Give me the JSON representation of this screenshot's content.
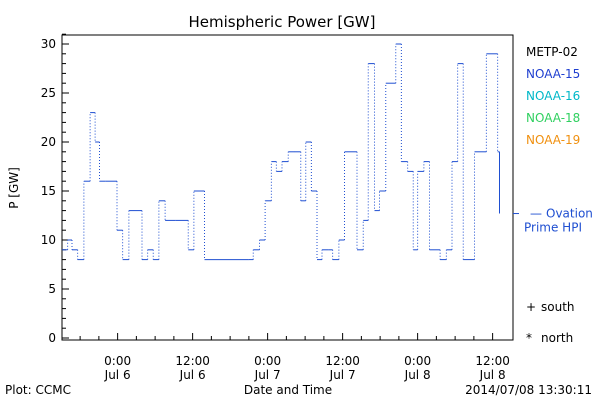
{
  "footer": {
    "plot_credit": "Plot: CCMC",
    "timestamp": "2014/07/08 13:30:11"
  },
  "colors": {
    "series_line": "#1f4fd1",
    "frame": "#000000",
    "METP-02": "#000000",
    "NOAA-15": "#1f3fd0",
    "NOAA-16": "#00b8c8",
    "NOAA-18": "#30d060",
    "NOAA-19": "#f09010",
    "ovation": "#1f4fd1"
  },
  "chart_data": {
    "type": "line",
    "title": "Hemispheric Power [GW]",
    "xlabel": "Date and Time",
    "ylabel": "P [GW]",
    "ylim": [
      0,
      31
    ],
    "xlim": [
      0,
      70
    ],
    "x_unit": "hours from the start of the plotted window (left axis edge)",
    "yticks": [
      0,
      5,
      10,
      15,
      20,
      25,
      30
    ],
    "xticks": [
      {
        "x": 8.9,
        "time": "0:00",
        "date": "Jul 6"
      },
      {
        "x": 20.9,
        "time": "12:00",
        "date": "Jul 6"
      },
      {
        "x": 32.9,
        "time": "0:00",
        "date": "Jul 7"
      },
      {
        "x": 44.9,
        "time": "12:00",
        "date": "Jul 7"
      },
      {
        "x": 56.9,
        "time": "0:00",
        "date": "Jul 8"
      },
      {
        "x": 68.9,
        "time": "12:00",
        "date": "Jul 8"
      }
    ],
    "grid": false,
    "series": [
      {
        "name": "Ovation Prime HPI",
        "style": "dotted step",
        "x": [
          0,
          0.9,
          1.6,
          2.5,
          3.5,
          4.5,
          5.3,
          6.0,
          7.0,
          8.8,
          9.7,
          10.7,
          12.8,
          13.7,
          14.6,
          15.5,
          16.5,
          18.2,
          20.2,
          21.1,
          22.8,
          29.9,
          30.6,
          31.6,
          32.5,
          33.5,
          34.3,
          35.2,
          36.2,
          37.2,
          38.2,
          39.0,
          39.9,
          40.8,
          41.6,
          42.6,
          43.3,
          44.3,
          45.2,
          47.2,
          48.2,
          49.0,
          50.0,
          50.8,
          51.8,
          53.4,
          54.3,
          55.3,
          56.2,
          56.9,
          57.9,
          58.8,
          60.5,
          61.5,
          62.4,
          63.3,
          64.2,
          66.0,
          67.9,
          69.7
        ],
        "values": [
          9,
          10,
          9,
          8,
          16,
          23,
          20,
          16,
          16,
          11,
          8,
          13,
          8,
          9,
          8,
          14,
          12,
          12,
          9,
          15,
          8,
          8,
          9,
          10,
          14,
          18,
          17,
          18,
          19,
          19,
          14,
          20,
          15,
          8,
          9,
          9,
          8,
          10,
          19,
          9,
          12,
          28,
          13,
          15,
          26,
          30,
          18,
          17,
          9,
          17,
          18,
          9,
          8,
          9,
          18,
          28,
          8,
          19,
          29,
          19
        ],
        "x_end": 70
      }
    ],
    "legend": {
      "placement": "right",
      "entries": [
        "METP-02",
        "NOAA-15",
        "NOAA-16",
        "NOAA-18",
        "NOAA-19"
      ]
    },
    "annotation": {
      "marker": "—",
      "line1": "Ovation",
      "line2": "Prime HPI",
      "value": 12.7
    },
    "symbol_key": [
      {
        "symbol": "+",
        "label": "south"
      },
      {
        "symbol": "*",
        "label": "north"
      }
    ]
  }
}
